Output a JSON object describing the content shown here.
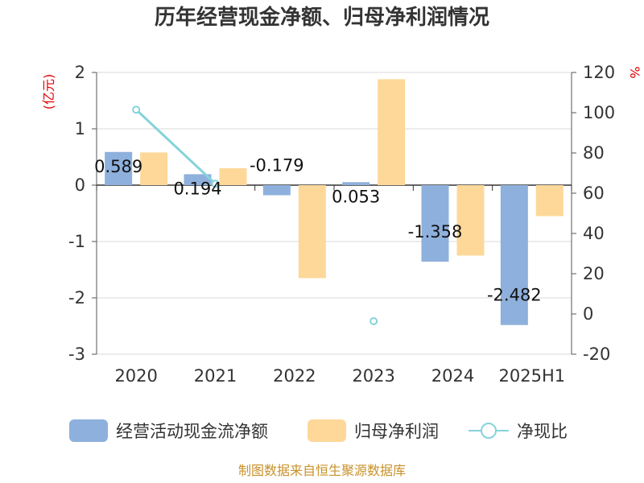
{
  "chart_data": {
    "type": "bar",
    "title": "历年经营现金净额、归母净利润情况",
    "categories": [
      "2020",
      "2021",
      "2022",
      "2023",
      "2024",
      "2025H1"
    ],
    "y_left_unit": "(亿元)",
    "y_right_unit": "%",
    "y_left_ticks": [
      "2",
      "1",
      "0",
      "-1",
      "-2",
      "-3"
    ],
    "y_right_ticks": [
      "120",
      "100",
      "80",
      "60",
      "40",
      "20",
      "0",
      "-20"
    ],
    "ylim_left": [
      -3,
      2
    ],
    "ylim_right": [
      -20,
      120
    ],
    "series": [
      {
        "name": "经营活动现金流净额",
        "type": "bar",
        "axis": "left",
        "color": "#8eb0dc",
        "values": [
          0.589,
          0.194,
          -0.179,
          0.053,
          -1.358,
          -2.482
        ],
        "labels": [
          "0.589",
          "0.194",
          "-0.179",
          "0.053",
          "-1.358",
          "-2.482"
        ]
      },
      {
        "name": "归母净利润",
        "type": "bar",
        "axis": "left",
        "color": "#fdd899",
        "values": [
          0.58,
          0.3,
          -1.65,
          1.88,
          -1.25,
          -0.55
        ]
      },
      {
        "name": "净现比",
        "type": "line",
        "axis": "right",
        "color": "#86d3da",
        "values": [
          101.5,
          64.7,
          null,
          -3.6,
          null,
          null
        ]
      }
    ],
    "legend_position": "bottom",
    "source": "制图数据来自恒生聚源数据库"
  }
}
